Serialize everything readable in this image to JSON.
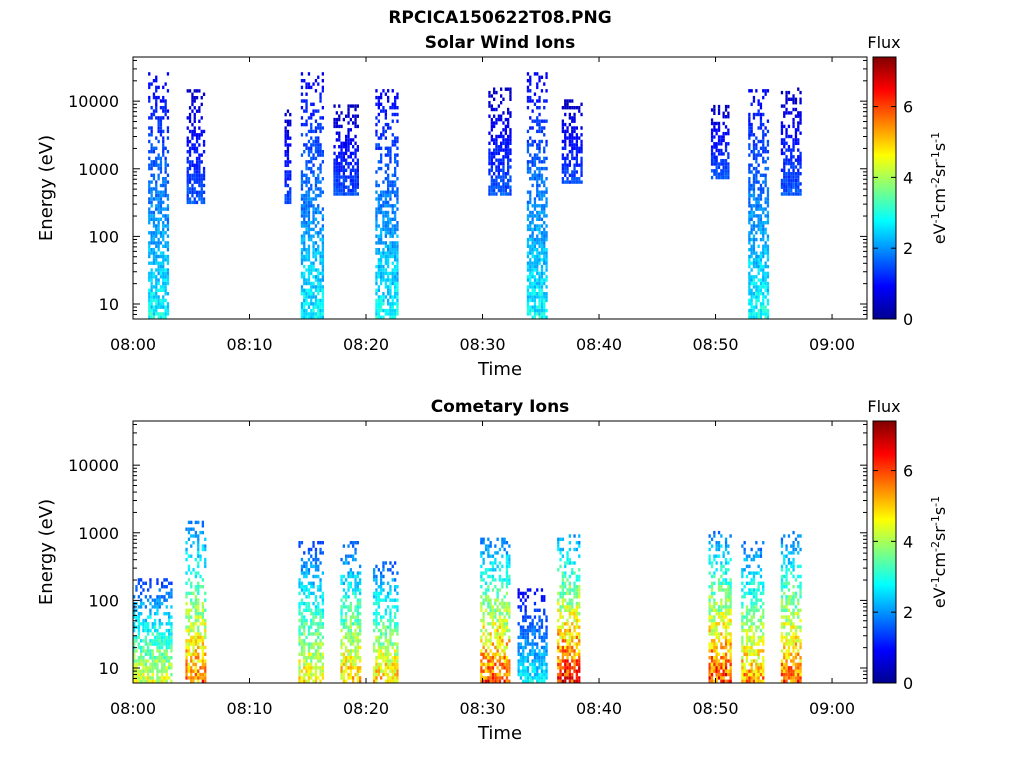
{
  "figure_title": "RPCICA150622T08.PNG",
  "chart_data": [
    {
      "type": "heatmap",
      "title": "Solar Wind Ions",
      "xlabel": "Time",
      "ylabel": "Energy (eV)",
      "y_scale": "log",
      "ylim": [
        6,
        45000
      ],
      "xlim": [
        "08:00",
        "09:03"
      ],
      "xticks": [
        "08:00",
        "08:10",
        "08:20",
        "08:30",
        "08:40",
        "08:50",
        "09:00"
      ],
      "yticks": [
        "10",
        "100",
        "1000",
        "10000"
      ],
      "colorbar": {
        "title": "Flux",
        "label": "eV-1cm-2sr-1s-1",
        "range": [
          0,
          7.4
        ],
        "ticks": [
          "0",
          "2",
          "4",
          "6"
        ],
        "colormap": "jet"
      },
      "bursts": [
        {
          "start_min": 1.3,
          "end_min": 3.0,
          "emin": 6,
          "emax": 25000,
          "peak_flux": 3.1
        },
        {
          "start_min": 4.6,
          "end_min": 6.2,
          "emin": 300,
          "emax": 15000,
          "peak_flux": 1.7
        },
        {
          "start_min": 13.0,
          "end_min": 13.5,
          "emin": 300,
          "emax": 8000,
          "peak_flux": 1.6
        },
        {
          "start_min": 14.4,
          "end_min": 16.2,
          "emin": 6,
          "emax": 30000,
          "peak_flux": 3.0
        },
        {
          "start_min": 17.2,
          "end_min": 19.2,
          "emin": 400,
          "emax": 8000,
          "peak_flux": 1.6
        },
        {
          "start_min": 20.8,
          "end_min": 22.6,
          "emin": 6,
          "emax": 15000,
          "peak_flux": 3.1
        },
        {
          "start_min": 30.5,
          "end_min": 32.4,
          "emin": 400,
          "emax": 15000,
          "peak_flux": 1.7
        },
        {
          "start_min": 33.8,
          "end_min": 35.6,
          "emin": 6,
          "emax": 25000,
          "peak_flux": 3.1
        },
        {
          "start_min": 36.8,
          "end_min": 38.6,
          "emin": 600,
          "emax": 10000,
          "peak_flux": 1.6
        },
        {
          "start_min": 49.6,
          "end_min": 51.2,
          "emin": 700,
          "emax": 8000,
          "peak_flux": 1.7
        },
        {
          "start_min": 52.8,
          "end_min": 54.6,
          "emin": 6,
          "emax": 15000,
          "peak_flux": 3.2
        },
        {
          "start_min": 55.6,
          "end_min": 57.4,
          "emin": 400,
          "emax": 15000,
          "peak_flux": 1.7
        }
      ]
    },
    {
      "type": "heatmap",
      "title": "Cometary Ions",
      "xlabel": "Time",
      "ylabel": "Energy (eV)",
      "y_scale": "log",
      "ylim": [
        6,
        45000
      ],
      "xlim": [
        "08:00",
        "09:03"
      ],
      "xticks": [
        "08:00",
        "08:10",
        "08:20",
        "08:30",
        "08:40",
        "08:50",
        "09:00"
      ],
      "yticks": [
        "10",
        "100",
        "1000",
        "10000"
      ],
      "colorbar": {
        "title": "Flux",
        "label": "eV-1cm-2sr-1s-1",
        "range": [
          0,
          7.4
        ],
        "ticks": [
          "0",
          "2",
          "4",
          "6"
        ],
        "colormap": "jet"
      },
      "bursts": [
        {
          "start_min": 0.0,
          "end_min": 3.4,
          "emin": 6,
          "emax": 200,
          "peak_flux": 4.8
        },
        {
          "start_min": 4.5,
          "end_min": 6.3,
          "emin": 6,
          "emax": 1500,
          "peak_flux": 6.2
        },
        {
          "start_min": 14.2,
          "end_min": 16.3,
          "emin": 6,
          "emax": 700,
          "peak_flux": 5.2
        },
        {
          "start_min": 17.8,
          "end_min": 19.4,
          "emin": 6,
          "emax": 700,
          "peak_flux": 5.6
        },
        {
          "start_min": 20.6,
          "end_min": 22.6,
          "emin": 6,
          "emax": 350,
          "peak_flux": 5.6
        },
        {
          "start_min": 29.8,
          "end_min": 32.4,
          "emin": 6,
          "emax": 800,
          "peak_flux": 6.6
        },
        {
          "start_min": 33.0,
          "end_min": 35.6,
          "emin": 6,
          "emax": 150,
          "peak_flux": 3.0
        },
        {
          "start_min": 36.4,
          "end_min": 38.4,
          "emin": 6,
          "emax": 1000,
          "peak_flux": 7.0
        },
        {
          "start_min": 49.4,
          "end_min": 51.4,
          "emin": 6,
          "emax": 1000,
          "peak_flux": 6.7
        },
        {
          "start_min": 52.2,
          "end_min": 54.2,
          "emin": 6,
          "emax": 700,
          "peak_flux": 6.0
        },
        {
          "start_min": 55.6,
          "end_min": 57.4,
          "emin": 6,
          "emax": 1000,
          "peak_flux": 6.4
        }
      ]
    }
  ]
}
